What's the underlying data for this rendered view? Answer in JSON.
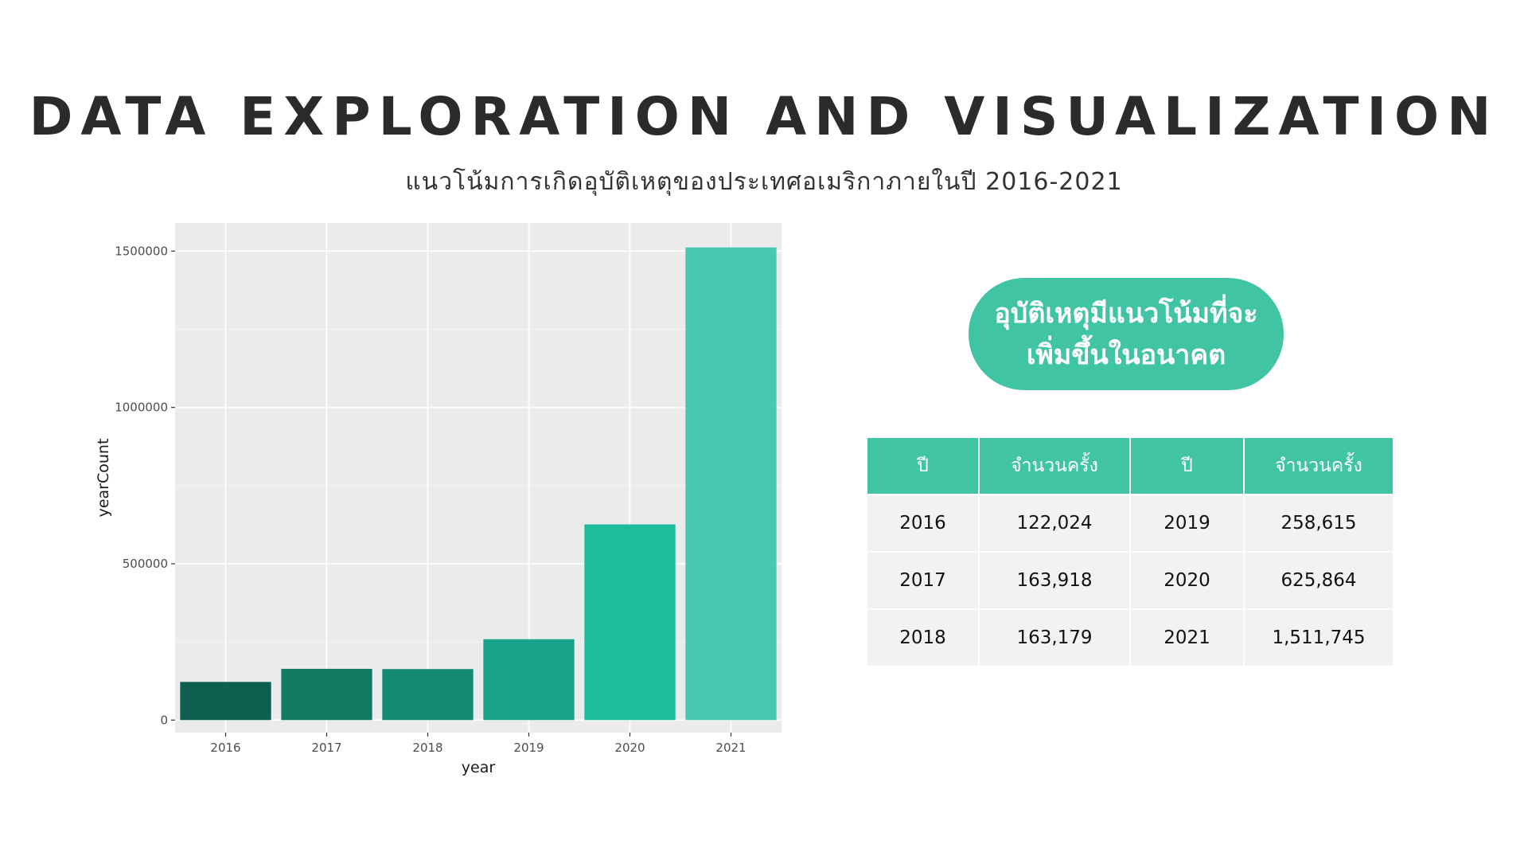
{
  "header": {
    "title": "DATA EXPLORATION AND VISUALIZATION",
    "subtitle": "แนวโน้มการเกิดอุบัติเหตุของประเทศอเมริกาภายในปี 2016-2021"
  },
  "callout": {
    "line1": "อุบัติเหตุมีแนวโน้มที่จะ",
    "line2": "เพิ่มขึ้นในอนาคต"
  },
  "table": {
    "headers": [
      "ปี",
      "จำนวนครั้ง",
      "ปี",
      "จำนวนครั้ง"
    ],
    "rows": [
      [
        "2016",
        "122,024",
        "2019",
        "258,615"
      ],
      [
        "2017",
        "163,918",
        "2020",
        "625,864"
      ],
      [
        "2018",
        "163,179",
        "2021",
        "1,511,745"
      ]
    ]
  },
  "colors": {
    "accent": "#40c4a4",
    "panel": "#ebebeb",
    "table_cell": "#f1f3f2",
    "bars": [
      "#0d6050",
      "#117a63",
      "#148a70",
      "#18a488",
      "#1cbd9a",
      "#48c8ae"
    ]
  },
  "chart_data": {
    "type": "bar",
    "categories": [
      "2016",
      "2017",
      "2018",
      "2019",
      "2020",
      "2021"
    ],
    "values": [
      122024,
      163918,
      163179,
      258615,
      625864,
      1511745
    ],
    "xlabel": "year",
    "ylabel": "yearCount",
    "ylim": [
      -40000,
      1590000
    ],
    "yticks": [
      0,
      500000,
      1000000,
      1500000
    ],
    "ytick_labels": [
      "0",
      "500000",
      "1000000",
      "1500000"
    ],
    "grid": true,
    "legend": "none"
  }
}
